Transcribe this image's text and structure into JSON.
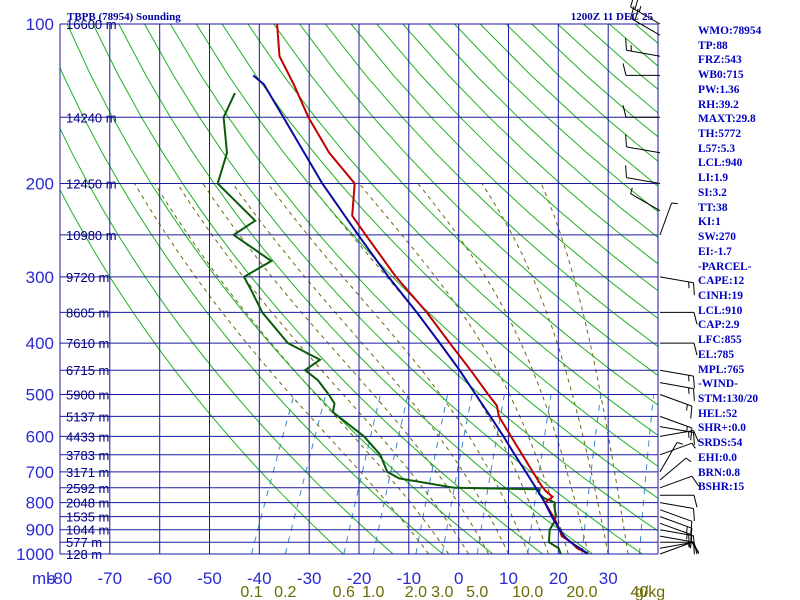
{
  "header": {
    "station": "TBPB (78954) Sounding",
    "time": "1200Z 11 DEC 25"
  },
  "indices": [
    "WMO:78954",
    "TP:88",
    "FRZ:543",
    "WB0:715",
    "PW:1.36",
    "RH:39.2",
    "MAXT:29.8",
    "TH:5772",
    "L57:5.3",
    "LCL:940",
    "LI:1.9",
    "SI:3.2",
    "TT:38",
    "KI:1",
    "SW:270",
    "EI:-1.7",
    "-PARCEL-",
    "CAPE:12",
    "CINH:19",
    "LCL:910",
    "CAP:2.9",
    "LFC:855",
    "EL:785",
    "MPL:765",
    "-WIND-",
    "STM:130/20",
    "HEL:52",
    "SHR+:0.0",
    "SRDS:54",
    "EHI:0.0",
    "BRN:0.8",
    "BSHR:15"
  ],
  "colors": {
    "grid": "#1a1aa0",
    "dry_adiabat": "#22b022",
    "moist_adiabat": "#6a6a10",
    "mixing_ratio": "#3a8ad0",
    "temperature": "#c00000",
    "dewpoint": "#0a5a0a",
    "parcel": "#0a0aa0",
    "wind_barb": "#000000"
  },
  "chart_data": {
    "type": "skew-t log-p",
    "pressure_unit_label": "mb",
    "pressure_range": [
      1000,
      100
    ],
    "pressure_ticks": [
      100,
      200,
      300,
      400,
      500,
      600,
      700,
      800,
      900,
      1000
    ],
    "temperature_range": [
      -80,
      40
    ],
    "temperature_ticks": [
      -80,
      -70,
      -60,
      -50,
      -40,
      -30,
      -20,
      -10,
      0,
      10,
      20,
      30
    ],
    "temperature_tick_labels": [
      "-80",
      "-70",
      "-60",
      "-50",
      "-40",
      "-30",
      "-20",
      "-10",
      "0",
      "10",
      "20",
      "30"
    ],
    "height_labels": [
      {
        "p": 100,
        "label": "16600 m"
      },
      {
        "p": 150,
        "label": "14240 m"
      },
      {
        "p": 200,
        "label": "12450 m"
      },
      {
        "p": 250,
        "label": "10980 m"
      },
      {
        "p": 300,
        "label": "9720 m"
      },
      {
        "p": 350,
        "label": "8605 m"
      },
      {
        "p": 400,
        "label": "7610 m"
      },
      {
        "p": 450,
        "label": "6715 m"
      },
      {
        "p": 500,
        "label": "5900 m"
      },
      {
        "p": 550,
        "label": "5137 m"
      },
      {
        "p": 600,
        "label": "4433 m"
      },
      {
        "p": 650,
        "label": "3783 m"
      },
      {
        "p": 700,
        "label": "3171 m"
      },
      {
        "p": 750,
        "label": "2592 m"
      },
      {
        "p": 800,
        "label": "2048 m"
      },
      {
        "p": 850,
        "label": "1535 m"
      },
      {
        "p": 900,
        "label": "1044 m"
      },
      {
        "p": 950,
        "label": "577 m"
      },
      {
        "p": 1000,
        "label": "128 m"
      }
    ],
    "mixing_ratio_labels": [
      "0.1",
      "0.2",
      "0.6",
      "1.0",
      "2.0",
      "3.0",
      "5.0",
      "10.0",
      "20.0",
      "40",
      "g/kg"
    ],
    "mixing_ratio_values": [
      0.1,
      0.2,
      0.6,
      1.0,
      2.0,
      3.0,
      5.0,
      10.0,
      20.0,
      40.0
    ],
    "dry_adiabats_K": [
      250,
      260,
      270,
      280,
      290,
      300,
      310,
      320,
      330,
      340,
      350,
      360,
      370,
      380,
      390,
      400,
      410,
      420,
      430,
      440,
      450,
      460,
      470,
      480,
      490,
      500,
      510,
      520
    ],
    "moist_adiabats_C": [
      -6,
      -2,
      2,
      6,
      10,
      14,
      18,
      22,
      26,
      30,
      34
    ],
    "temperature_profile": [
      {
        "p": 1000,
        "t": 25.8
      },
      {
        "p": 990,
        "t": 25.0
      },
      {
        "p": 975,
        "t": 23.2
      },
      {
        "p": 950,
        "t": 21.5
      },
      {
        "p": 925,
        "t": 19.0
      },
      {
        "p": 900,
        "t": 18.0
      },
      {
        "p": 875,
        "t": 16.8
      },
      {
        "p": 850,
        "t": 15.5
      },
      {
        "p": 825,
        "t": 14.0
      },
      {
        "p": 800,
        "t": 12.5
      },
      {
        "p": 780,
        "t": 13.5
      },
      {
        "p": 760,
        "t": 11.5
      },
      {
        "p": 740,
        "t": 10.0
      },
      {
        "p": 700,
        "t": 7.2
      },
      {
        "p": 650,
        "t": 3.5
      },
      {
        "p": 600,
        "t": -0.5
      },
      {
        "p": 550,
        "t": -4.8
      },
      {
        "p": 525,
        "t": -6.2
      },
      {
        "p": 500,
        "t": -9.0
      },
      {
        "p": 450,
        "t": -14.8
      },
      {
        "p": 400,
        "t": -21.5
      },
      {
        "p": 350,
        "t": -29.0
      },
      {
        "p": 300,
        "t": -38.5
      },
      {
        "p": 250,
        "t": -48.5
      },
      {
        "p": 230,
        "t": -53.0
      },
      {
        "p": 200,
        "t": -55.5
      },
      {
        "p": 175,
        "t": -63.5
      },
      {
        "p": 150,
        "t": -71.0
      },
      {
        "p": 130,
        "t": -77.0
      },
      {
        "p": 115,
        "t": -82.5
      },
      {
        "p": 100,
        "t": -86.0
      }
    ],
    "dewpoint_profile": [
      {
        "p": 1000,
        "td": 20.5
      },
      {
        "p": 975,
        "td": 19.5
      },
      {
        "p": 950,
        "td": 17.0
      },
      {
        "p": 925,
        "td": 16.5
      },
      {
        "p": 900,
        "td": 16.0
      },
      {
        "p": 870,
        "td": 16.2
      },
      {
        "p": 850,
        "td": 16.0
      },
      {
        "p": 820,
        "td": 15.0
      },
      {
        "p": 800,
        "td": 14.5
      },
      {
        "p": 785,
        "td": 12.0
      },
      {
        "p": 770,
        "td": 10.5
      },
      {
        "p": 755,
        "td": 10.2
      },
      {
        "p": 750,
        "td": -7.0
      },
      {
        "p": 720,
        "td": -19.0
      },
      {
        "p": 700,
        "td": -22.0
      },
      {
        "p": 650,
        "td": -25.0
      },
      {
        "p": 600,
        "td": -30.0
      },
      {
        "p": 540,
        "td": -38.5
      },
      {
        "p": 520,
        "td": -39.0
      },
      {
        "p": 500,
        "td": -41.0
      },
      {
        "p": 470,
        "td": -44.5
      },
      {
        "p": 450,
        "td": -48.0
      },
      {
        "p": 430,
        "td": -46.0
      },
      {
        "p": 400,
        "td": -54.0
      },
      {
        "p": 350,
        "td": -62.0
      },
      {
        "p": 320,
        "td": -66.0
      },
      {
        "p": 300,
        "td": -69.0
      },
      {
        "p": 280,
        "td": -65.0
      },
      {
        "p": 250,
        "td": -75.0
      },
      {
        "p": 235,
        "td": -72.0
      },
      {
        "p": 200,
        "td": -83.0
      },
      {
        "p": 175,
        "td": -84.0
      },
      {
        "p": 150,
        "td": -88.0
      },
      {
        "p": 135,
        "td": -88.0
      }
    ],
    "parcel_profile": [
      {
        "p": 1000,
        "t": 26.0
      },
      {
        "p": 975,
        "t": 23.8
      },
      {
        "p": 950,
        "t": 21.3
      },
      {
        "p": 925,
        "t": 19.5
      },
      {
        "p": 900,
        "t": 18.0
      },
      {
        "p": 850,
        "t": 15.2
      },
      {
        "p": 800,
        "t": 12.5
      },
      {
        "p": 750,
        "t": 9.3
      },
      {
        "p": 700,
        "t": 5.8
      },
      {
        "p": 650,
        "t": 2.0
      },
      {
        "p": 600,
        "t": -2.0
      },
      {
        "p": 550,
        "t": -6.5
      },
      {
        "p": 500,
        "t": -11.5
      },
      {
        "p": 450,
        "t": -17.0
      },
      {
        "p": 400,
        "t": -23.5
      },
      {
        "p": 350,
        "t": -31.0
      },
      {
        "p": 300,
        "t": -40.0
      },
      {
        "p": 250,
        "t": -50.0
      },
      {
        "p": 200,
        "t": -62.0
      },
      {
        "p": 150,
        "t": -76.0
      },
      {
        "p": 130,
        "t": -83.0
      },
      {
        "p": 125,
        "t": -86.0
      }
    ],
    "wind_profile": [
      {
        "p": 1000,
        "dir": 70,
        "spd": 10
      },
      {
        "p": 975,
        "dir": 80,
        "spd": 10
      },
      {
        "p": 950,
        "dir": 90,
        "spd": 15
      },
      {
        "p": 925,
        "dir": 100,
        "spd": 15
      },
      {
        "p": 900,
        "dir": 100,
        "spd": 15
      },
      {
        "p": 875,
        "dir": 110,
        "spd": 15
      },
      {
        "p": 850,
        "dir": 110,
        "spd": 15
      },
      {
        "p": 825,
        "dir": 110,
        "spd": 10
      },
      {
        "p": 800,
        "dir": 100,
        "spd": 10
      },
      {
        "p": 775,
        "dir": 90,
        "spd": 10
      },
      {
        "p": 750,
        "dir": 70,
        "spd": 10
      },
      {
        "p": 725,
        "dir": 50,
        "spd": 5
      },
      {
        "p": 700,
        "dir": 30,
        "spd": 5
      },
      {
        "p": 650,
        "dir": 70,
        "spd": 5
      },
      {
        "p": 600,
        "dir": 80,
        "spd": 10
      },
      {
        "p": 575,
        "dir": 100,
        "spd": 15
      },
      {
        "p": 550,
        "dir": 110,
        "spd": 15
      },
      {
        "p": 500,
        "dir": 110,
        "spd": 15
      },
      {
        "p": 475,
        "dir": 100,
        "spd": 15
      },
      {
        "p": 450,
        "dir": 100,
        "spd": 15
      },
      {
        "p": 400,
        "dir": 90,
        "spd": 10
      },
      {
        "p": 350,
        "dir": 90,
        "spd": 10
      },
      {
        "p": 300,
        "dir": 100,
        "spd": 15
      },
      {
        "p": 250,
        "dir": 20,
        "spd": 5
      },
      {
        "p": 225,
        "dir": 300,
        "spd": 5
      },
      {
        "p": 200,
        "dir": 280,
        "spd": 10
      },
      {
        "p": 175,
        "dir": 280,
        "spd": 10
      },
      {
        "p": 150,
        "dir": 270,
        "spd": 10
      },
      {
        "p": 125,
        "dir": 270,
        "spd": 10
      },
      {
        "p": 115,
        "dir": 280,
        "spd": 15
      },
      {
        "p": 105,
        "dir": 300,
        "spd": 20
      },
      {
        "p": 100,
        "dir": 300,
        "spd": 25
      }
    ]
  }
}
